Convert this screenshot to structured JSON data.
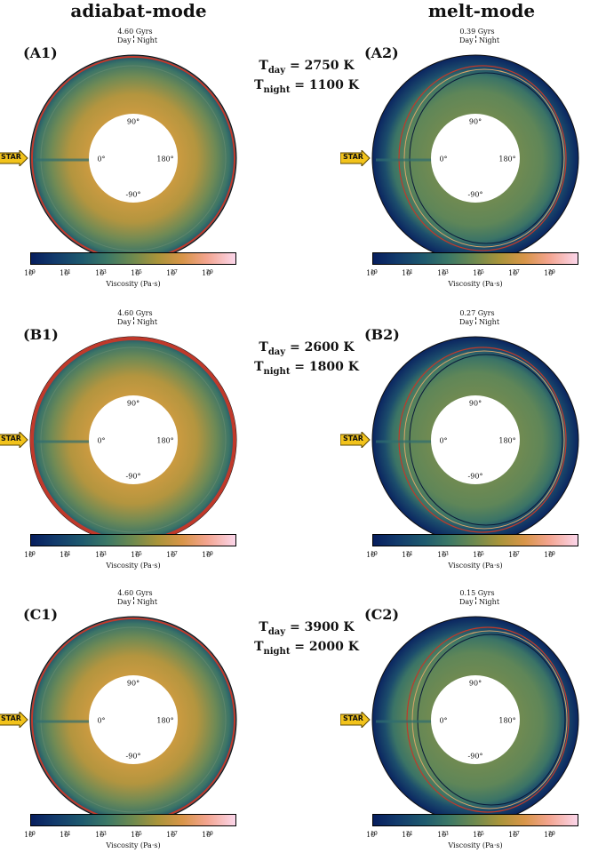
{
  "columns": {
    "left": "adiabat-mode",
    "right": "melt-mode"
  },
  "colorbar": {
    "label": "Viscosity (Pa·s)",
    "ticks_low": [
      "10",
      "10",
      "10",
      "10",
      "10",
      "10"
    ],
    "exponents": [
      "19",
      "21",
      "23",
      "25",
      "27",
      "29"
    ]
  },
  "star_label": "STAR",
  "angles": {
    "top": "90°",
    "left": "0°",
    "right": "180°",
    "bottom": "-90°"
  },
  "day_label": "Day",
  "night_label": "Night",
  "rows": [
    {
      "left_label": "(A1)",
      "right_label": "(A2)",
      "left_time": "4.60 Gyrs",
      "right_time": "0.39 Gyrs",
      "t_day": "T",
      "t_day_sub": "day",
      "t_day_val": " = 2750 K",
      "t_night": "T",
      "t_night_sub": "night",
      "t_night_val": " = 1100 K"
    },
    {
      "left_label": "(B1)",
      "right_label": "(B2)",
      "left_time": "4.60 Gyrs",
      "right_time": "0.27 Gyrs",
      "t_day": "T",
      "t_day_sub": "day",
      "t_day_val": " = 2600 K",
      "t_night": "T",
      "t_night_sub": "night",
      "t_night_val": " = 1800 K"
    },
    {
      "left_label": "(C1)",
      "right_label": "(C2)",
      "left_time": "4.60 Gyrs",
      "right_time": "0.15 Gyrs",
      "t_day": "T",
      "t_day_sub": "day",
      "t_day_val": " = 3900 K",
      "t_night": "T",
      "t_night_sub": "night",
      "t_night_val": " = 2000 K"
    }
  ],
  "colors": {
    "deep": "#071e5e",
    "mid": "#3b7866",
    "warm": "#c59a3e",
    "boundary": "#c0392b"
  }
}
